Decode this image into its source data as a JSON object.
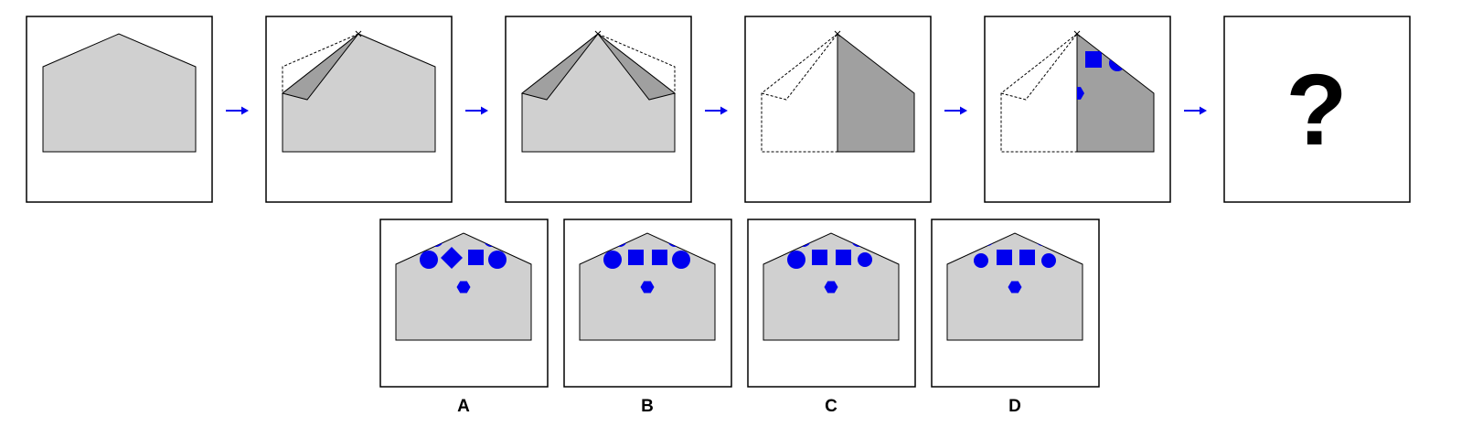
{
  "colors": {
    "paper": "#d0d0d0",
    "flap": "#a0a0a0",
    "shape": "#0000ee",
    "arrow": "#0000ee",
    "outline": "#000000"
  },
  "question_mark": "?",
  "options": [
    {
      "label": "A"
    },
    {
      "label": "B"
    },
    {
      "label": "C"
    },
    {
      "label": "D"
    }
  ]
}
